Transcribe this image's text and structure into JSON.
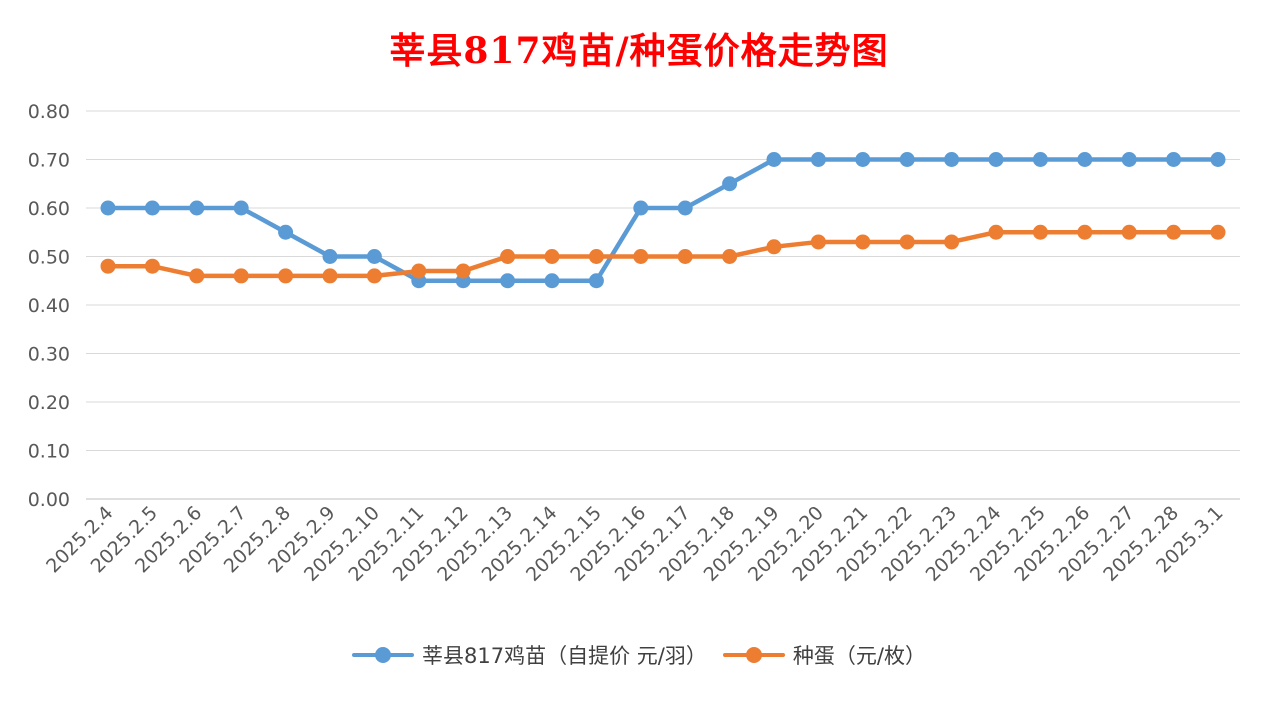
{
  "chart_data": {
    "type": "line",
    "title": "莘县817鸡苗/种蛋价格走势图",
    "categories": [
      "2025.2.4",
      "2025.2.5",
      "2025.2.6",
      "2025.2.7",
      "2025.2.8",
      "2025.2.9",
      "2025.2.10",
      "2025.2.11",
      "2025.2.12",
      "2025.2.13",
      "2025.2.14",
      "2025.2.15",
      "2025.2.16",
      "2025.2.17",
      "2025.2.18",
      "2025.2.19",
      "2025.2.20",
      "2025.2.21",
      "2025.2.22",
      "2025.2.23",
      "2025.2.24",
      "2025.2.25",
      "2025.2.26",
      "2025.2.27",
      "2025.2.28",
      "2025.3.1"
    ],
    "series": [
      {
        "name": "莘县817鸡苗（自提价 元/羽）",
        "color": "#5b9bd5",
        "values": [
          0.6,
          0.6,
          0.6,
          0.6,
          0.55,
          0.5,
          0.5,
          0.45,
          0.45,
          0.45,
          0.45,
          0.45,
          0.6,
          0.6,
          0.65,
          0.7,
          0.7,
          0.7,
          0.7,
          0.7,
          0.7,
          0.7,
          0.7,
          0.7,
          0.7,
          0.7
        ]
      },
      {
        "name": "种蛋（元/枚）",
        "color": "#ed7d31",
        "values": [
          0.48,
          0.48,
          0.46,
          0.46,
          0.46,
          0.46,
          0.46,
          0.47,
          0.47,
          0.5,
          0.5,
          0.5,
          0.5,
          0.5,
          0.5,
          0.52,
          0.53,
          0.53,
          0.53,
          0.53,
          0.55,
          0.55,
          0.55,
          0.55,
          0.55,
          0.55
        ]
      }
    ],
    "ylim": [
      0,
      0.8
    ],
    "yticks": [
      "0.00",
      "0.10",
      "0.20",
      "0.30",
      "0.40",
      "0.50",
      "0.60",
      "0.70",
      "0.80"
    ],
    "grid": true,
    "legend_position": "bottom"
  }
}
